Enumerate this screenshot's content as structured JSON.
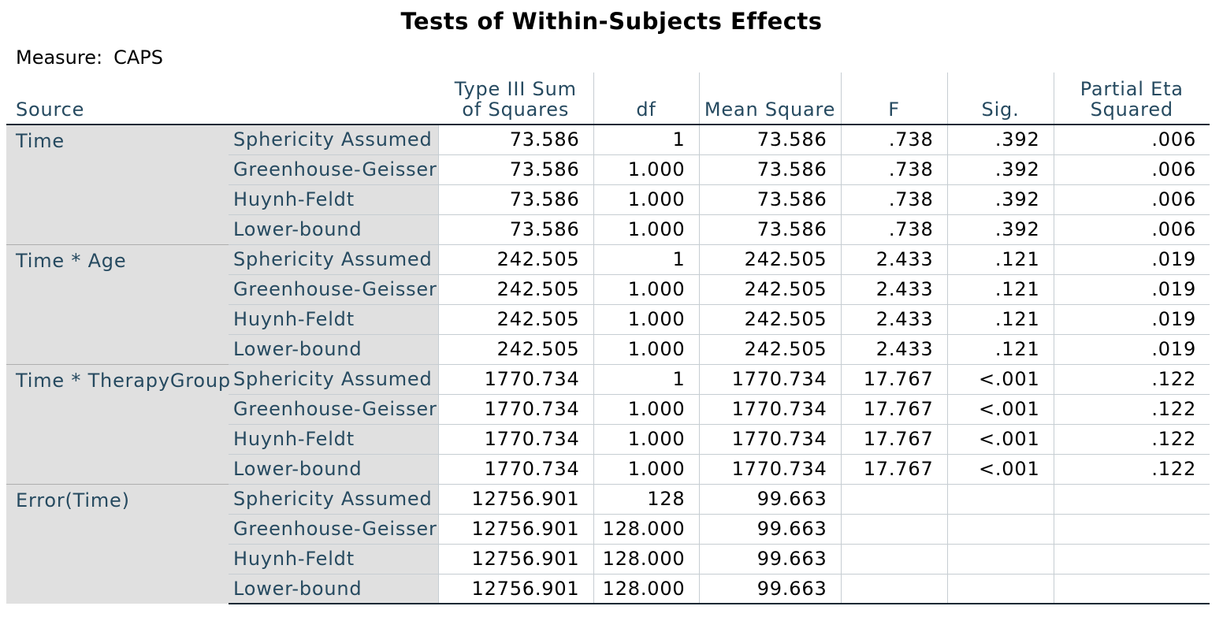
{
  "title": "Tests of Within-Subjects Effects",
  "measure_label": "Measure:",
  "measure_value": "CAPS",
  "columns": {
    "source": "Source",
    "ss": "Type III Sum of Squares",
    "df": "df",
    "ms": "Mean Square",
    "f": "F",
    "sig": "Sig.",
    "eta": "Partial Eta Squared"
  },
  "groups": [
    {
      "source": "Time",
      "rows": [
        {
          "corr": "Sphericity Assumed",
          "ss": "73.586",
          "df": "1",
          "ms": "73.586",
          "f": ".738",
          "sig": ".392",
          "eta": ".006"
        },
        {
          "corr": "Greenhouse-Geisser",
          "ss": "73.586",
          "df": "1.000",
          "ms": "73.586",
          "f": ".738",
          "sig": ".392",
          "eta": ".006"
        },
        {
          "corr": "Huynh-Feldt",
          "ss": "73.586",
          "df": "1.000",
          "ms": "73.586",
          "f": ".738",
          "sig": ".392",
          "eta": ".006"
        },
        {
          "corr": "Lower-bound",
          "ss": "73.586",
          "df": "1.000",
          "ms": "73.586",
          "f": ".738",
          "sig": ".392",
          "eta": ".006"
        }
      ]
    },
    {
      "source": "Time * Age",
      "rows": [
        {
          "corr": "Sphericity Assumed",
          "ss": "242.505",
          "df": "1",
          "ms": "242.505",
          "f": "2.433",
          "sig": ".121",
          "eta": ".019"
        },
        {
          "corr": "Greenhouse-Geisser",
          "ss": "242.505",
          "df": "1.000",
          "ms": "242.505",
          "f": "2.433",
          "sig": ".121",
          "eta": ".019"
        },
        {
          "corr": "Huynh-Feldt",
          "ss": "242.505",
          "df": "1.000",
          "ms": "242.505",
          "f": "2.433",
          "sig": ".121",
          "eta": ".019"
        },
        {
          "corr": "Lower-bound",
          "ss": "242.505",
          "df": "1.000",
          "ms": "242.505",
          "f": "2.433",
          "sig": ".121",
          "eta": ".019"
        }
      ]
    },
    {
      "source": "Time * TherapyGroup",
      "rows": [
        {
          "corr": "Sphericity Assumed",
          "ss": "1770.734",
          "df": "1",
          "ms": "1770.734",
          "f": "17.767",
          "sig": "<.001",
          "eta": ".122"
        },
        {
          "corr": "Greenhouse-Geisser",
          "ss": "1770.734",
          "df": "1.000",
          "ms": "1770.734",
          "f": "17.767",
          "sig": "<.001",
          "eta": ".122"
        },
        {
          "corr": "Huynh-Feldt",
          "ss": "1770.734",
          "df": "1.000",
          "ms": "1770.734",
          "f": "17.767",
          "sig": "<.001",
          "eta": ".122"
        },
        {
          "corr": "Lower-bound",
          "ss": "1770.734",
          "df": "1.000",
          "ms": "1770.734",
          "f": "17.767",
          "sig": "<.001",
          "eta": ".122"
        }
      ]
    },
    {
      "source": "Error(Time)",
      "rows": [
        {
          "corr": "Sphericity Assumed",
          "ss": "12756.901",
          "df": "128",
          "ms": "99.663",
          "f": "",
          "sig": "",
          "eta": ""
        },
        {
          "corr": "Greenhouse-Geisser",
          "ss": "12756.901",
          "df": "128.000",
          "ms": "99.663",
          "f": "",
          "sig": "",
          "eta": ""
        },
        {
          "corr": "Huynh-Feldt",
          "ss": "12756.901",
          "df": "128.000",
          "ms": "99.663",
          "f": "",
          "sig": "",
          "eta": ""
        },
        {
          "corr": "Lower-bound",
          "ss": "12756.901",
          "df": "128.000",
          "ms": "99.663",
          "f": "",
          "sig": "",
          "eta": ""
        }
      ]
    }
  ]
}
